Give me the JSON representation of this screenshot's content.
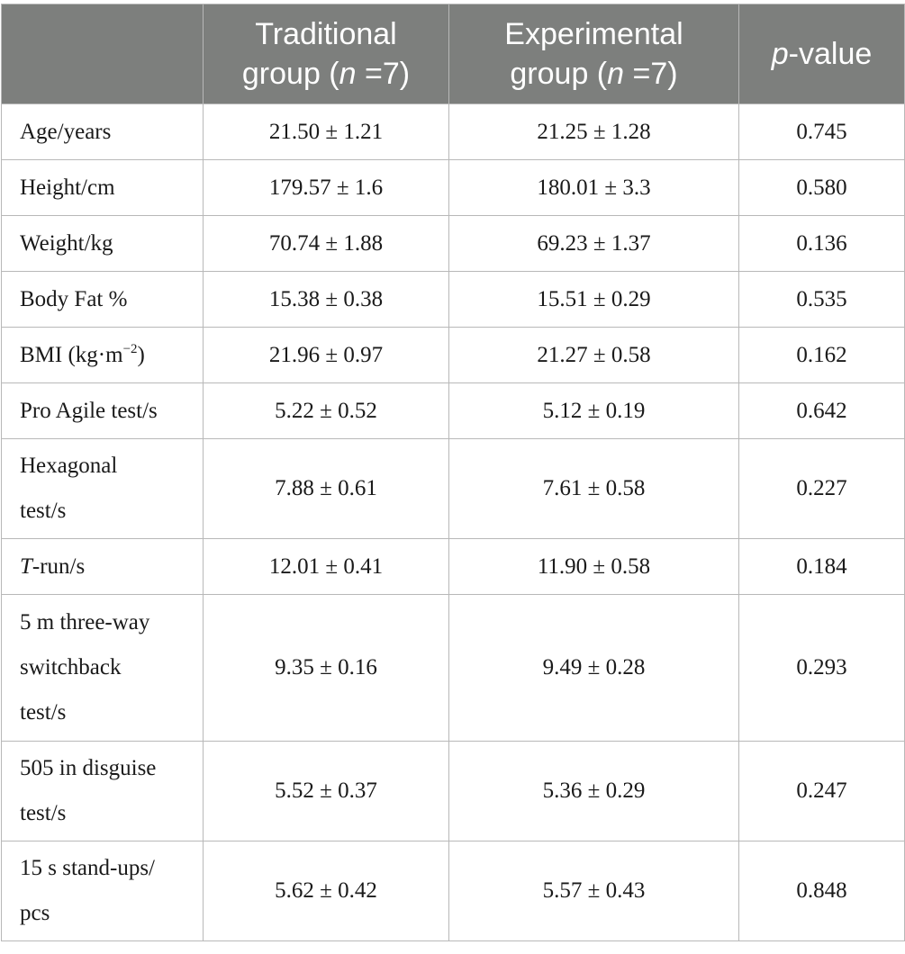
{
  "header": {
    "col0": "",
    "col1_line1": "Traditional",
    "col1_line2_pre": "group (",
    "col1_n": "n",
    "col1_line2_post": " =7)",
    "col2_line1": "Experimental",
    "col2_line2_pre": "group (",
    "col2_n": "n",
    "col2_line2_post": " =7)",
    "col3_p": "p",
    "col3_rest": "-value"
  },
  "rows": [
    {
      "label_lines": [
        "Age/years"
      ],
      "traditional": "21.50 ± 1.21",
      "experimental": "21.25 ± 1.28",
      "p_value": "0.745"
    },
    {
      "label_lines": [
        "Height/cm"
      ],
      "traditional": "179.57 ± 1.6",
      "experimental": "180.01 ± 3.3",
      "p_value": "0.580"
    },
    {
      "label_lines": [
        "Weight/kg"
      ],
      "traditional": "70.74 ± 1.88",
      "experimental": "69.23 ± 1.37",
      "p_value": "0.136"
    },
    {
      "label_lines": [
        "Body Fat %"
      ],
      "traditional": "15.38 ± 0.38",
      "experimental": "15.51 ± 0.29",
      "p_value": "0.535"
    },
    {
      "label_pre": "BMI (kg·m",
      "label_sup": "−2",
      "label_post": ")",
      "traditional": "21.96 ± 0.97",
      "experimental": "21.27 ± 0.58",
      "p_value": "0.162"
    },
    {
      "label_lines": [
        "Pro Agile test/s"
      ],
      "traditional": "5.22 ± 0.52",
      "experimental": "5.12 ± 0.19",
      "p_value": "0.642"
    },
    {
      "label_lines": [
        "Hexagonal",
        "test/s"
      ],
      "traditional": "7.88 ± 0.61",
      "experimental": "7.61 ± 0.58",
      "p_value": "0.227"
    },
    {
      "label_italic": "T",
      "label_rest": "-run/s",
      "traditional": "12.01 ± 0.41",
      "experimental": "11.90 ± 0.58",
      "p_value": "0.184"
    },
    {
      "label_lines": [
        "5 m three-way",
        "switchback",
        "test/s"
      ],
      "traditional": "9.35 ± 0.16",
      "experimental": "9.49 ± 0.28",
      "p_value": "0.293"
    },
    {
      "label_lines": [
        "505 in disguise",
        "test/s"
      ],
      "traditional": "5.52 ± 0.37",
      "experimental": "5.36 ± 0.29",
      "p_value": "0.247"
    },
    {
      "label_lines": [
        "15 s stand-ups/",
        "pcs"
      ],
      "traditional": "5.62 ± 0.42",
      "experimental": "5.57 ± 0.43",
      "p_value": "0.848"
    }
  ]
}
